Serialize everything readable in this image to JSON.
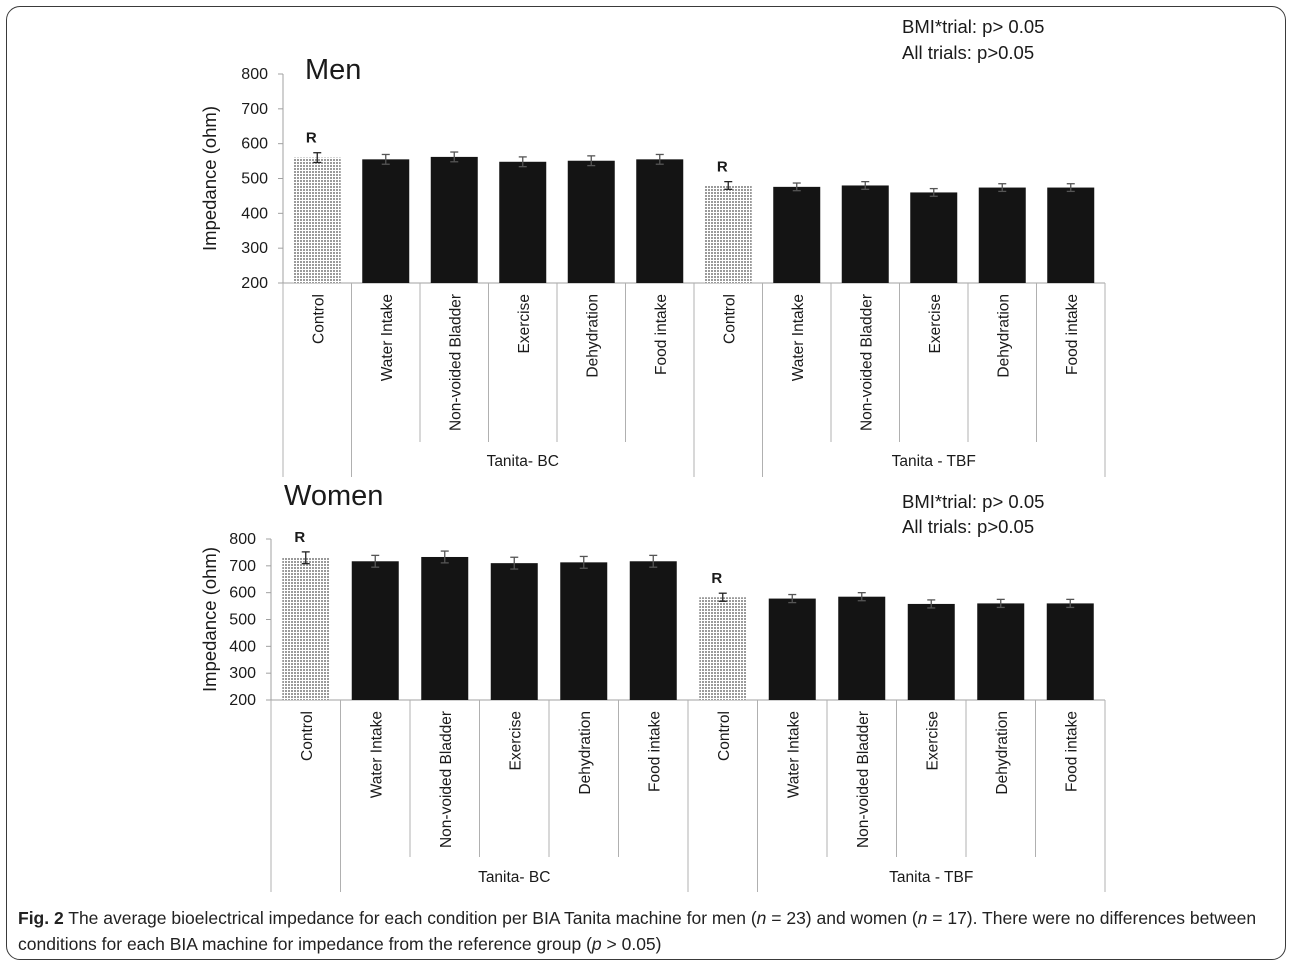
{
  "caption": {
    "label": "Fig. 2",
    "parts": [
      {
        "t": " The average bioelectrical impedance for each condition per BIA Tanita machine for men ("
      },
      {
        "t": "n",
        "i": true
      },
      {
        "t": " = 23) and women ("
      },
      {
        "t": "n",
        "i": true
      },
      {
        "t": " = 17). There were no differences between conditions for each BIA machine for impedance from the reference group ("
      },
      {
        "t": "p",
        "i": true
      },
      {
        "t": " > 0.05)"
      }
    ]
  },
  "pattern_color": "#9a9a9a",
  "bar_color": "#141414",
  "chart_data": [
    {
      "type": "bar",
      "title": "Men",
      "ylabel": "Impedance (ohm)",
      "ylim": [
        200,
        800
      ],
      "yticks": [
        200,
        300,
        400,
        500,
        600,
        700,
        800
      ],
      "annotations": [
        "BMI*trial: p> 0.05",
        "All trials: p>0.05"
      ],
      "categories": [
        "Control",
        "Water Intake",
        "Non-voided Bladder",
        "Exercise",
        "Dehydration",
        "Food intake",
        "Control",
        "Water Intake",
        "Non-voided Bladder",
        "Exercise",
        "Dehydration",
        "Food intake"
      ],
      "groups": [
        {
          "label": "Tanita- BC",
          "from": 1,
          "to": 5
        },
        {
          "label": "Tanita - TBF",
          "from": 7,
          "to": 11
        }
      ],
      "values": [
        560,
        555,
        562,
        548,
        551,
        555,
        480,
        476,
        480,
        460,
        474,
        474
      ],
      "errors": [
        14,
        14,
        14,
        14,
        14,
        14,
        11,
        11,
        11,
        11,
        11,
        11
      ],
      "reference": [
        0,
        6
      ],
      "reference_marker": "R"
    },
    {
      "type": "bar",
      "title": "Women",
      "ylabel": "Impedance (ohm)",
      "ylim": [
        200,
        800
      ],
      "yticks": [
        200,
        300,
        400,
        500,
        600,
        700,
        800
      ],
      "annotations": [
        "BMI*trial: p> 0.05",
        "All trials: p>0.05"
      ],
      "categories": [
        "Control",
        "Water Intake",
        "Non-voided Bladder",
        "Exercise",
        "Dehydration",
        "Food intake",
        "Control",
        "Water Intake",
        "Non-voided Bladder",
        "Exercise",
        "Dehydration",
        "Food intake"
      ],
      "groups": [
        {
          "label": "Tanita- BC",
          "from": 1,
          "to": 5
        },
        {
          "label": "Tanita - TBF",
          "from": 7,
          "to": 11
        }
      ],
      "values": [
        730,
        717,
        733,
        710,
        713,
        717,
        583,
        578,
        585,
        558,
        560,
        560
      ],
      "errors": [
        22,
        22,
        22,
        22,
        22,
        22,
        15,
        15,
        15,
        15,
        15,
        15
      ],
      "reference": [
        0,
        6
      ],
      "reference_marker": "R"
    }
  ]
}
